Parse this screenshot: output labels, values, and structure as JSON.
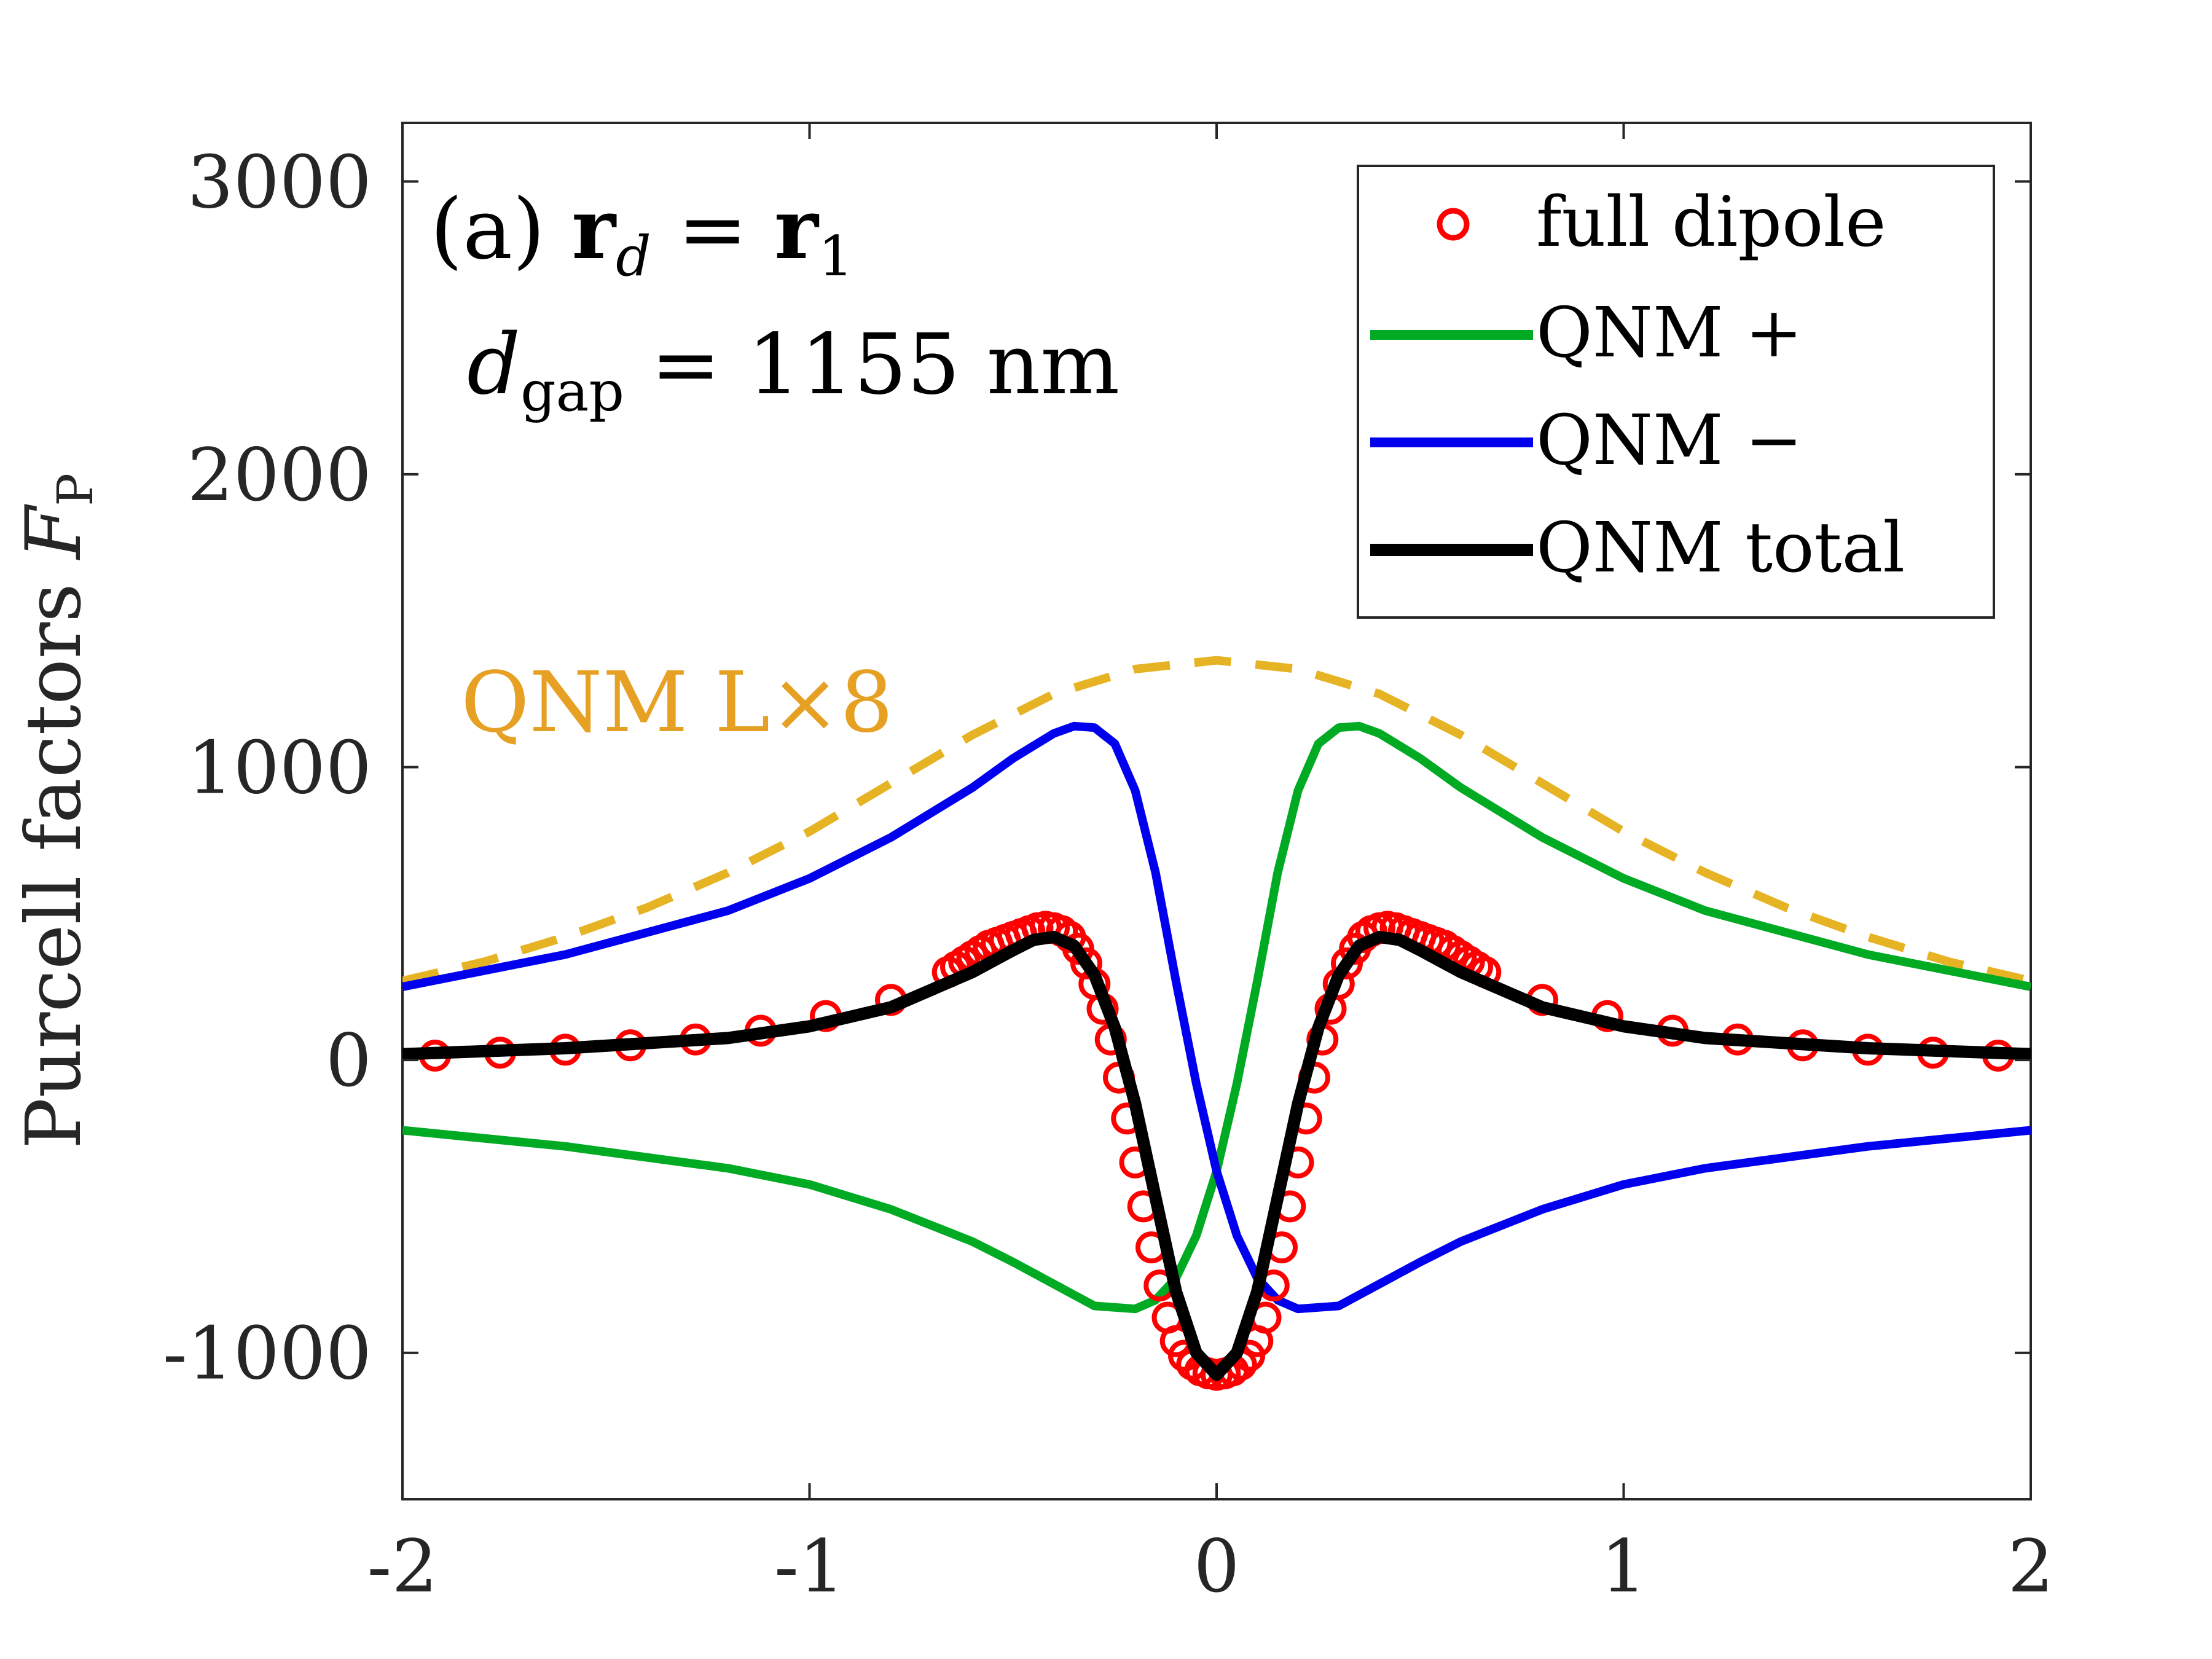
{
  "chart_data": {
    "type": "line",
    "title": "",
    "xlabel": "",
    "ylabel": "Purcell factors F_P",
    "ylabel_parts": {
      "main": "Purcell factors ",
      "symbol": "F",
      "subscript": "P"
    },
    "xlim": [
      -2,
      2
    ],
    "ylim": [
      -1500,
      3200
    ],
    "xticks": [
      -2,
      -1,
      0,
      1,
      2
    ],
    "xtick_labels": [
      "-2",
      "-1",
      "0",
      "1",
      "2"
    ],
    "yticks": [
      -1000,
      0,
      1000,
      2000,
      3000
    ],
    "ytick_labels": [
      "-1000",
      "0",
      "1000",
      "2000",
      "3000"
    ],
    "grid": false,
    "legend_position": "top-right",
    "annotations": {
      "panel": {
        "prefix": "(a) ",
        "r": "r",
        "d_sub": "d",
        "equals": " = ",
        "r1": "r",
        "one_sub": "1"
      },
      "gap": {
        "d": "d",
        "gap_sub": "gap",
        "value": " = 1155 nm"
      },
      "lorentzian": "QNM L×8"
    },
    "colors": {
      "full_dipole": "#ff0000",
      "qnm_plus": "#00aa22",
      "qnm_minus": "#0000ee",
      "qnm_total": "#000000",
      "lorentzian": "#e6b325",
      "axis": "#262626"
    },
    "series": [
      {
        "name": "full dipole",
        "style": "markers",
        "x": [
          -1.92,
          -1.76,
          -1.6,
          -1.44,
          -1.28,
          -1.12,
          -0.96,
          -0.8,
          -0.66,
          -0.64,
          -0.62,
          -0.6,
          -0.58,
          -0.56,
          -0.54,
          -0.52,
          -0.5,
          -0.48,
          -0.46,
          -0.44,
          -0.42,
          -0.4,
          -0.38,
          -0.36,
          -0.34,
          -0.32,
          -0.3,
          -0.28,
          -0.26,
          -0.24,
          -0.22,
          -0.2,
          -0.18,
          -0.16,
          -0.14,
          -0.12,
          -0.1,
          -0.08,
          -0.06,
          -0.04,
          -0.02,
          0,
          0.02,
          0.04,
          0.06,
          0.08,
          0.1,
          0.12,
          0.14,
          0.16,
          0.18,
          0.2,
          0.22,
          0.24,
          0.26,
          0.28,
          0.3,
          0.32,
          0.34,
          0.36,
          0.38,
          0.4,
          0.42,
          0.44,
          0.46,
          0.48,
          0.5,
          0.52,
          0.54,
          0.56,
          0.58,
          0.6,
          0.62,
          0.64,
          0.66,
          0.8,
          0.96,
          1.12,
          1.28,
          1.44,
          1.6,
          1.76,
          1.92
        ],
        "y": [
          15,
          25,
          35,
          50,
          70,
          100,
          150,
          205,
          300,
          318,
          336,
          354,
          372,
          390,
          400,
          410,
          420,
          430,
          440,
          450,
          455,
          450,
          440,
          420,
          380,
          330,
          260,
          175,
          70,
          -60,
          -200,
          -350,
          -500,
          -640,
          -770,
          -880,
          -960,
          -1010,
          -1040,
          -1060,
          -1070,
          -1075,
          -1070,
          -1060,
          -1040,
          -1010,
          -960,
          -880,
          -770,
          -640,
          -500,
          -350,
          -200,
          -60,
          70,
          175,
          260,
          330,
          380,
          420,
          440,
          450,
          455,
          450,
          440,
          430,
          420,
          410,
          400,
          390,
          372,
          354,
          336,
          318,
          300,
          205,
          150,
          100,
          70,
          50,
          35,
          25,
          15
        ]
      },
      {
        "name": "QNM +",
        "style": "line",
        "x": [
          -2,
          -1.6,
          -1.2,
          -1,
          -0.8,
          -0.6,
          -0.5,
          -0.4,
          -0.3,
          -0.2,
          -0.15,
          -0.1,
          -0.05,
          0,
          0.05,
          0.1,
          0.15,
          0.2,
          0.25,
          0.3,
          0.35,
          0.4,
          0.5,
          0.6,
          0.8,
          1,
          1.2,
          1.6,
          2
        ],
        "y": [
          -240,
          -295,
          -370,
          -425,
          -510,
          -620,
          -690,
          -765,
          -840,
          -850,
          -820,
          -745,
          -600,
          -380,
          -80,
          270,
          640,
          920,
          1080,
          1135,
          1140,
          1115,
          1030,
          930,
          760,
          620,
          510,
          360,
          250
        ]
      },
      {
        "name": "QNM −",
        "style": "line",
        "x": [
          -2,
          -1.6,
          -1.2,
          -1,
          -0.8,
          -0.6,
          -0.5,
          -0.4,
          -0.35,
          -0.3,
          -0.25,
          -0.2,
          -0.15,
          -0.1,
          -0.05,
          0,
          0.05,
          0.1,
          0.15,
          0.2,
          0.3,
          0.4,
          0.5,
          0.6,
          0.8,
          1,
          1.2,
          1.6,
          2
        ],
        "y": [
          250,
          360,
          510,
          620,
          760,
          930,
          1030,
          1115,
          1140,
          1135,
          1080,
          920,
          640,
          270,
          -80,
          -380,
          -600,
          -745,
          -820,
          -850,
          -840,
          -765,
          -690,
          -620,
          -510,
          -425,
          -370,
          -295,
          -240
        ]
      },
      {
        "name": "QNM total",
        "style": "line",
        "x": [
          -2,
          -1.6,
          -1.2,
          -1,
          -0.8,
          -0.6,
          -0.5,
          -0.45,
          -0.4,
          -0.35,
          -0.3,
          -0.25,
          -0.2,
          -0.15,
          -0.1,
          -0.05,
          0,
          0.05,
          0.1,
          0.15,
          0.2,
          0.25,
          0.3,
          0.35,
          0.4,
          0.45,
          0.5,
          0.6,
          0.8,
          1,
          1.2,
          1.6,
          2
        ],
        "y": [
          20,
          40,
          75,
          115,
          180,
          300,
          375,
          410,
          420,
          390,
          290,
          110,
          -150,
          -470,
          -790,
          -1000,
          -1075,
          -1000,
          -790,
          -470,
          -150,
          110,
          290,
          390,
          420,
          410,
          375,
          300,
          180,
          115,
          75,
          40,
          20
        ]
      },
      {
        "name": "QNM L×8",
        "style": "dashed",
        "x": [
          -2,
          -1.8,
          -1.6,
          -1.4,
          -1.2,
          -1,
          -0.8,
          -0.6,
          -0.4,
          -0.2,
          0,
          0.2,
          0.4,
          0.6,
          0.8,
          1,
          1.2,
          1.4,
          1.6,
          1.8,
          2
        ],
        "y": [
          270,
          335,
          420,
          520,
          640,
          780,
          945,
          1110,
          1250,
          1335,
          1365,
          1335,
          1250,
          1110,
          945,
          780,
          640,
          520,
          420,
          335,
          270
        ]
      }
    ],
    "legend": [
      "full dipole",
      "QNM +",
      "QNM −",
      "QNM total"
    ]
  }
}
